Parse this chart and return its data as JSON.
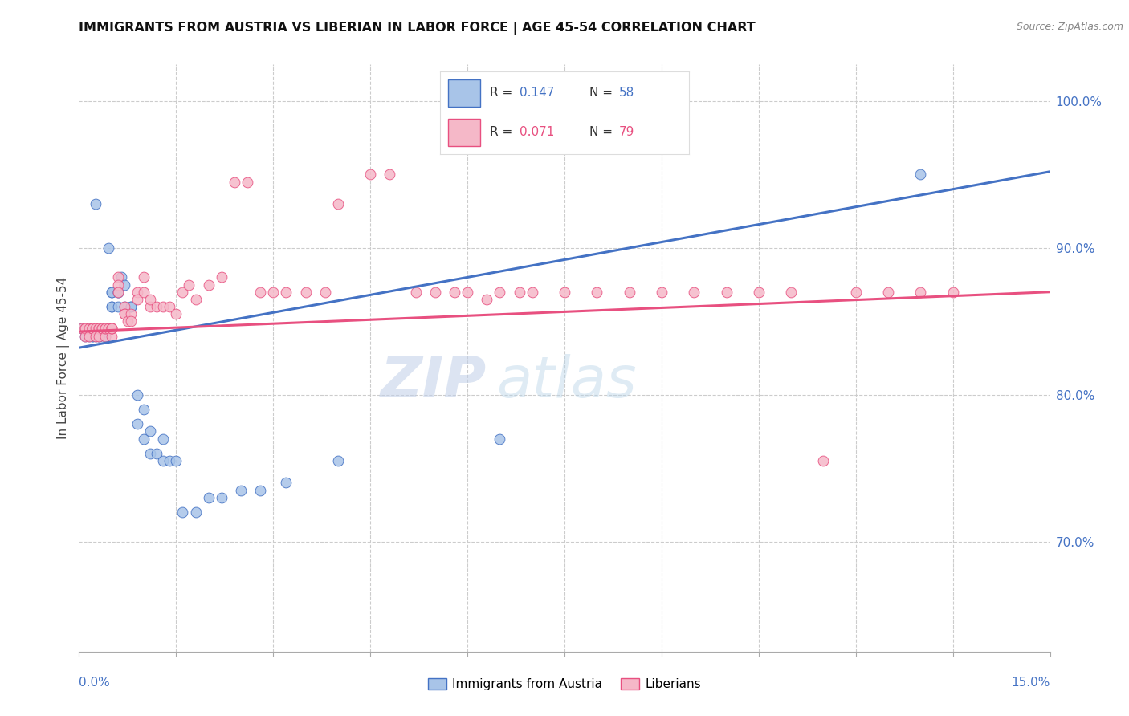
{
  "title": "IMMIGRANTS FROM AUSTRIA VS LIBERIAN IN LABOR FORCE | AGE 45-54 CORRELATION CHART",
  "source": "Source: ZipAtlas.com",
  "ylabel": "In Labor Force | Age 45-54",
  "right_yticks": [
    "70.0%",
    "80.0%",
    "90.0%",
    "100.0%"
  ],
  "right_ytick_vals": [
    0.7,
    0.8,
    0.9,
    1.0
  ],
  "xmin": 0.0,
  "xmax": 0.15,
  "ymin": 0.625,
  "ymax": 1.025,
  "color_austria": "#a8c4e8",
  "color_liberia": "#f5b8c8",
  "color_austria_line": "#4472c4",
  "color_liberia_line": "#e85080",
  "watermark_zip": "ZIP",
  "watermark_atlas": "atlas",
  "austria_x": [
    0.0005,
    0.001,
    0.001,
    0.001,
    0.0015,
    0.0015,
    0.0015,
    0.002,
    0.002,
    0.002,
    0.0025,
    0.0025,
    0.003,
    0.003,
    0.003,
    0.003,
    0.003,
    0.0035,
    0.0035,
    0.004,
    0.004,
    0.004,
    0.004,
    0.0045,
    0.0045,
    0.005,
    0.005,
    0.005,
    0.005,
    0.006,
    0.006,
    0.006,
    0.0065,
    0.007,
    0.007,
    0.008,
    0.008,
    0.009,
    0.009,
    0.01,
    0.01,
    0.011,
    0.011,
    0.012,
    0.013,
    0.013,
    0.014,
    0.015,
    0.016,
    0.018,
    0.02,
    0.022,
    0.025,
    0.028,
    0.032,
    0.04,
    0.065,
    0.13
  ],
  "austria_y": [
    0.845,
    0.845,
    0.84,
    0.845,
    0.84,
    0.845,
    0.845,
    0.84,
    0.845,
    0.84,
    0.84,
    0.93,
    0.84,
    0.845,
    0.845,
    0.845,
    0.84,
    0.845,
    0.845,
    0.845,
    0.845,
    0.845,
    0.84,
    0.845,
    0.9,
    0.86,
    0.87,
    0.87,
    0.86,
    0.87,
    0.86,
    0.87,
    0.88,
    0.86,
    0.875,
    0.86,
    0.86,
    0.78,
    0.8,
    0.77,
    0.79,
    0.76,
    0.775,
    0.76,
    0.755,
    0.77,
    0.755,
    0.755,
    0.72,
    0.72,
    0.73,
    0.73,
    0.735,
    0.735,
    0.74,
    0.755,
    0.77,
    0.95
  ],
  "liberia_x": [
    0.0005,
    0.001,
    0.001,
    0.001,
    0.0015,
    0.0015,
    0.002,
    0.002,
    0.002,
    0.0025,
    0.0025,
    0.003,
    0.003,
    0.003,
    0.0035,
    0.0035,
    0.004,
    0.004,
    0.004,
    0.0045,
    0.005,
    0.005,
    0.005,
    0.005,
    0.006,
    0.006,
    0.006,
    0.007,
    0.007,
    0.007,
    0.0075,
    0.008,
    0.008,
    0.009,
    0.009,
    0.01,
    0.01,
    0.011,
    0.011,
    0.012,
    0.013,
    0.014,
    0.015,
    0.016,
    0.017,
    0.018,
    0.02,
    0.022,
    0.024,
    0.026,
    0.028,
    0.03,
    0.032,
    0.035,
    0.038,
    0.04,
    0.045,
    0.048,
    0.052,
    0.055,
    0.058,
    0.06,
    0.063,
    0.065,
    0.068,
    0.07,
    0.075,
    0.08,
    0.085,
    0.09,
    0.095,
    0.1,
    0.105,
    0.11,
    0.115,
    0.12,
    0.125,
    0.13,
    0.135
  ],
  "liberia_y": [
    0.845,
    0.845,
    0.84,
    0.845,
    0.845,
    0.84,
    0.845,
    0.845,
    0.845,
    0.845,
    0.84,
    0.845,
    0.845,
    0.84,
    0.845,
    0.845,
    0.84,
    0.845,
    0.845,
    0.845,
    0.84,
    0.845,
    0.845,
    0.845,
    0.88,
    0.875,
    0.87,
    0.86,
    0.855,
    0.855,
    0.85,
    0.855,
    0.85,
    0.87,
    0.865,
    0.87,
    0.88,
    0.86,
    0.865,
    0.86,
    0.86,
    0.86,
    0.855,
    0.87,
    0.875,
    0.865,
    0.875,
    0.88,
    0.945,
    0.945,
    0.87,
    0.87,
    0.87,
    0.87,
    0.87,
    0.93,
    0.95,
    0.95,
    0.87,
    0.87,
    0.87,
    0.87,
    0.865,
    0.87,
    0.87,
    0.87,
    0.87,
    0.87,
    0.87,
    0.87,
    0.87,
    0.87,
    0.87,
    0.87,
    0.755,
    0.87,
    0.87,
    0.87,
    0.87
  ]
}
